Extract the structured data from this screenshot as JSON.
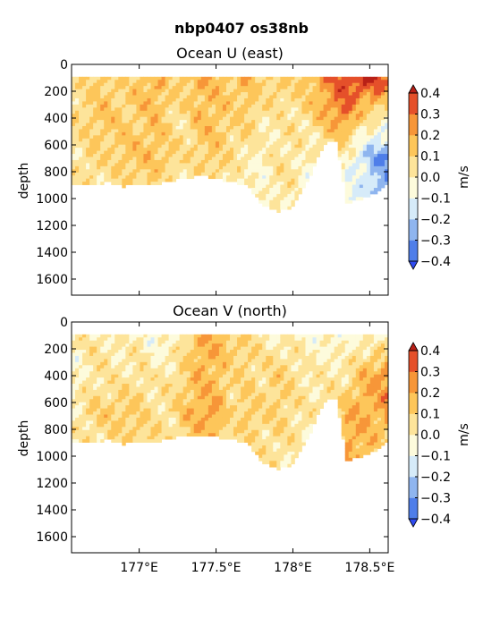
{
  "figure_title": "nbp0407 os38nb",
  "colormap": {
    "levels": [
      -0.4,
      -0.3,
      -0.2,
      -0.1,
      0.0,
      0.1,
      0.2,
      0.3,
      0.4
    ],
    "colors": [
      "#2f4bf0",
      "#4f7ee9",
      "#8fb5ef",
      "#d6ebf9",
      "#fdfbdc",
      "#fde49a",
      "#fdc65a",
      "#f79638",
      "#e5502a",
      "#b82017"
    ],
    "missing": "#ffffff"
  },
  "chart_data": [
    {
      "type": "heatmap",
      "title": "Ocean U (east)",
      "xlabel": "",
      "ylabel": "depth",
      "colorbar_label": "m/s",
      "colorbar_ticks": [
        "0.4",
        "0.3",
        "0.2",
        "0.1",
        "0.0",
        "−0.1",
        "−0.2",
        "−0.3",
        "−0.4"
      ],
      "xlim": [
        176.56,
        178.62
      ],
      "ylim": [
        1720,
        0
      ],
      "xticks": [
        177.0,
        177.5,
        178.0,
        178.5
      ],
      "xtick_labels": [
        "177°E",
        "177.5°E",
        "178°E",
        "178.5°E"
      ],
      "show_xtick_labels": false,
      "yticks": [
        0,
        200,
        400,
        600,
        800,
        1000,
        1200,
        1400,
        1600
      ],
      "ytick_labels": [
        "0",
        "200",
        "400",
        "600",
        "800",
        "1000",
        "1200",
        "1400",
        "1600"
      ],
      "z_units": "m/s",
      "grid": false,
      "columns": [
        {
          "lon": 176.6,
          "bottom": 890,
          "profile": [
            [
              100,
              0.05
            ],
            [
              400,
              0.08
            ],
            [
              700,
              0.04
            ],
            [
              890,
              0.03
            ]
          ]
        },
        {
          "lon": 176.7,
          "bottom": 900,
          "profile": [
            [
              100,
              0.1
            ],
            [
              400,
              0.12
            ],
            [
              700,
              0.1
            ],
            [
              900,
              0.06
            ]
          ]
        },
        {
          "lon": 176.8,
          "bottom": 880,
          "profile": [
            [
              100,
              0.12
            ],
            [
              400,
              0.15
            ],
            [
              700,
              0.08
            ],
            [
              880,
              0.05
            ]
          ]
        },
        {
          "lon": 176.9,
          "bottom": 910,
          "profile": [
            [
              100,
              0.08
            ],
            [
              400,
              0.1
            ],
            [
              700,
              0.14
            ],
            [
              910,
              0.08
            ]
          ]
        },
        {
          "lon": 177.0,
          "bottom": 890,
          "profile": [
            [
              100,
              0.15
            ],
            [
              400,
              0.12
            ],
            [
              700,
              0.13
            ],
            [
              890,
              0.07
            ]
          ]
        },
        {
          "lon": 177.1,
          "bottom": 900,
          "profile": [
            [
              100,
              0.2
            ],
            [
              400,
              0.16
            ],
            [
              700,
              0.15
            ],
            [
              900,
              0.1
            ]
          ]
        },
        {
          "lon": 177.2,
          "bottom": 870,
          "profile": [
            [
              100,
              0.1
            ],
            [
              400,
              0.08
            ],
            [
              700,
              0.12
            ],
            [
              870,
              0.05
            ]
          ]
        },
        {
          "lon": 177.3,
          "bottom": 850,
          "profile": [
            [
              100,
              0.14
            ],
            [
              400,
              0.06
            ],
            [
              700,
              0.05
            ],
            [
              850,
              0.03
            ]
          ]
        },
        {
          "lon": 177.4,
          "bottom": 830,
          "profile": [
            [
              100,
              0.18
            ],
            [
              400,
              0.16
            ],
            [
              700,
              0.1
            ],
            [
              830,
              0.06
            ]
          ]
        },
        {
          "lon": 177.5,
          "bottom": 850,
          "profile": [
            [
              100,
              0.16
            ],
            [
              400,
              0.15
            ],
            [
              700,
              0.12
            ],
            [
              850,
              0.08
            ]
          ]
        },
        {
          "lon": 177.6,
          "bottom": 880,
          "profile": [
            [
              100,
              0.12
            ],
            [
              400,
              0.1
            ],
            [
              700,
              0.06
            ],
            [
              880,
              0.04
            ]
          ]
        },
        {
          "lon": 177.7,
          "bottom": 900,
          "profile": [
            [
              100,
              0.18
            ],
            [
              400,
              0.12
            ],
            [
              700,
              0.02
            ],
            [
              900,
              -0.02
            ]
          ]
        },
        {
          "lon": 177.8,
          "bottom": 1050,
          "profile": [
            [
              100,
              0.08
            ],
            [
              400,
              0.04
            ],
            [
              700,
              -0.02
            ],
            [
              1050,
              -0.05
            ]
          ]
        },
        {
          "lon": 177.9,
          "bottom": 1100,
          "profile": [
            [
              100,
              0.14
            ],
            [
              400,
              0.02
            ],
            [
              700,
              0.06
            ],
            [
              1100,
              0.03
            ]
          ]
        },
        {
          "lon": 178.0,
          "bottom": 1060,
          "profile": [
            [
              100,
              0.1
            ],
            [
              400,
              0.05
            ],
            [
              700,
              0.04
            ],
            [
              1060,
              0.02
            ]
          ]
        },
        {
          "lon": 178.1,
          "bottom": 870,
          "profile": [
            [
              100,
              0.15
            ],
            [
              400,
              0.08
            ],
            [
              700,
              -0.03
            ],
            [
              870,
              -0.05
            ]
          ]
        },
        {
          "lon": 178.2,
          "bottom": 600,
          "profile": [
            [
              100,
              0.25
            ],
            [
              400,
              0.15
            ],
            [
              600,
              0.05
            ]
          ]
        },
        {
          "lon": 178.28,
          "bottom": 560,
          "profile": [
            [
              100,
              0.32
            ],
            [
              300,
              0.3
            ],
            [
              560,
              0.1
            ]
          ]
        },
        {
          "lon": 178.35,
          "bottom": 1030,
          "profile": [
            [
              100,
              0.36
            ],
            [
              400,
              0.28
            ],
            [
              700,
              -0.05
            ],
            [
              1030,
              -0.08
            ]
          ]
        },
        {
          "lon": 178.45,
          "bottom": 1010,
          "profile": [
            [
              100,
              0.42
            ],
            [
              400,
              0.08
            ],
            [
              700,
              -0.15
            ],
            [
              1010,
              -0.12
            ]
          ]
        },
        {
          "lon": 178.55,
          "bottom": 950,
          "profile": [
            [
              100,
              0.4
            ],
            [
              400,
              0.05
            ],
            [
              700,
              -0.28
            ],
            [
              950,
              -0.2
            ]
          ]
        },
        {
          "lon": 178.6,
          "bottom": 900,
          "profile": [
            [
              100,
              0.3
            ],
            [
              400,
              0.02
            ],
            [
              700,
              -0.32
            ],
            [
              900,
              -0.25
            ]
          ]
        }
      ]
    },
    {
      "type": "heatmap",
      "title": "Ocean V (north)",
      "xlabel": "",
      "ylabel": "depth",
      "colorbar_label": "m/s",
      "colorbar_ticks": [
        "0.4",
        "0.3",
        "0.2",
        "0.1",
        "0.0",
        "−0.1",
        "−0.2",
        "−0.3",
        "−0.4"
      ],
      "xlim": [
        176.56,
        178.62
      ],
      "ylim": [
        1720,
        0
      ],
      "xticks": [
        177.0,
        177.5,
        178.0,
        178.5
      ],
      "xtick_labels": [
        "177°E",
        "177.5°E",
        "178°E",
        "178.5°E"
      ],
      "show_xtick_labels": true,
      "yticks": [
        0,
        200,
        400,
        600,
        800,
        1000,
        1200,
        1400,
        1600
      ],
      "ytick_labels": [
        "0",
        "200",
        "400",
        "600",
        "800",
        "1000",
        "1200",
        "1400",
        "1600"
      ],
      "z_units": "m/s",
      "grid": false,
      "columns": [
        {
          "lon": 176.6,
          "bottom": 890,
          "profile": [
            [
              100,
              0.02
            ],
            [
              400,
              -0.04
            ],
            [
              700,
              0.03
            ],
            [
              890,
              0.02
            ]
          ]
        },
        {
          "lon": 176.7,
          "bottom": 900,
          "profile": [
            [
              100,
              0.04
            ],
            [
              400,
              0.06
            ],
            [
              700,
              0.1
            ],
            [
              900,
              0.05
            ]
          ]
        },
        {
          "lon": 176.8,
          "bottom": 880,
          "profile": [
            [
              100,
              0.03
            ],
            [
              400,
              0.02
            ],
            [
              700,
              0.12
            ],
            [
              880,
              0.06
            ]
          ]
        },
        {
          "lon": 176.9,
          "bottom": 910,
          "profile": [
            [
              100,
              -0.02
            ],
            [
              400,
              0.04
            ],
            [
              700,
              0.13
            ],
            [
              910,
              0.08
            ]
          ]
        },
        {
          "lon": 177.0,
          "bottom": 890,
          "profile": [
            [
              100,
              0.02
            ],
            [
              400,
              0.06
            ],
            [
              700,
              0.12
            ],
            [
              890,
              0.1
            ]
          ]
        },
        {
          "lon": 177.1,
          "bottom": 900,
          "profile": [
            [
              100,
              -0.06
            ],
            [
              400,
              0.02
            ],
            [
              700,
              0.06
            ],
            [
              900,
              0.08
            ]
          ]
        },
        {
          "lon": 177.2,
          "bottom": 870,
          "profile": [
            [
              100,
              -0.04
            ],
            [
              400,
              0.04
            ],
            [
              700,
              0.06
            ],
            [
              870,
              0.04
            ]
          ]
        },
        {
          "lon": 177.3,
          "bottom": 850,
          "profile": [
            [
              100,
              0.06
            ],
            [
              400,
              0.1
            ],
            [
              700,
              0.14
            ],
            [
              850,
              0.12
            ]
          ]
        },
        {
          "lon": 177.4,
          "bottom": 840,
          "profile": [
            [
              100,
              0.2
            ],
            [
              400,
              0.18
            ],
            [
              700,
              0.2
            ],
            [
              840,
              0.15
            ]
          ]
        },
        {
          "lon": 177.5,
          "bottom": 860,
          "profile": [
            [
              100,
              0.18
            ],
            [
              400,
              0.16
            ],
            [
              700,
              0.22
            ],
            [
              860,
              0.16
            ]
          ]
        },
        {
          "lon": 177.6,
          "bottom": 880,
          "profile": [
            [
              100,
              0.12
            ],
            [
              400,
              0.08
            ],
            [
              700,
              0.06
            ],
            [
              880,
              0.04
            ]
          ]
        },
        {
          "lon": 177.7,
          "bottom": 900,
          "profile": [
            [
              100,
              0.1
            ],
            [
              400,
              0.1
            ],
            [
              700,
              0.14
            ],
            [
              900,
              0.08
            ]
          ]
        },
        {
          "lon": 177.8,
          "bottom": 1050,
          "profile": [
            [
              100,
              0.04
            ],
            [
              400,
              0.06
            ],
            [
              700,
              0.08
            ],
            [
              1050,
              0.03
            ]
          ]
        },
        {
          "lon": 177.9,
          "bottom": 1100,
          "profile": [
            [
              100,
              -0.02
            ],
            [
              400,
              0.12
            ],
            [
              700,
              0.1
            ],
            [
              1100,
              0.04
            ]
          ]
        },
        {
          "lon": 178.0,
          "bottom": 1060,
          "profile": [
            [
              100,
              0.02
            ],
            [
              400,
              0.08
            ],
            [
              700,
              0.06
            ],
            [
              1060,
              0.03
            ]
          ]
        },
        {
          "lon": 178.1,
          "bottom": 870,
          "profile": [
            [
              100,
              -0.04
            ],
            [
              400,
              0.03
            ],
            [
              700,
              0.02
            ],
            [
              870,
              0.03
            ]
          ]
        },
        {
          "lon": 178.2,
          "bottom": 600,
          "profile": [
            [
              100,
              -0.02
            ],
            [
              400,
              0.02
            ],
            [
              600,
              0.04
            ]
          ]
        },
        {
          "lon": 178.28,
          "bottom": 560,
          "profile": [
            [
              100,
              -0.06
            ],
            [
              300,
              0.02
            ],
            [
              560,
              0.06
            ]
          ]
        },
        {
          "lon": 178.35,
          "bottom": 1030,
          "profile": [
            [
              100,
              -0.04
            ],
            [
              400,
              0.05
            ],
            [
              700,
              0.18
            ],
            [
              1030,
              0.22
            ]
          ]
        },
        {
          "lon": 178.45,
          "bottom": 1010,
          "profile": [
            [
              100,
              -0.02
            ],
            [
              400,
              0.15
            ],
            [
              700,
              0.2
            ],
            [
              1010,
              0.16
            ]
          ]
        },
        {
          "lon": 178.55,
          "bottom": 950,
          "profile": [
            [
              100,
              -0.04
            ],
            [
              400,
              0.22
            ],
            [
              700,
              0.18
            ],
            [
              950,
              0.12
            ]
          ]
        },
        {
          "lon": 178.6,
          "bottom": 900,
          "profile": [
            [
              100,
              -0.06
            ],
            [
              400,
              0.26
            ],
            [
              700,
              0.22
            ],
            [
              900,
              0.12
            ]
          ]
        }
      ]
    }
  ]
}
